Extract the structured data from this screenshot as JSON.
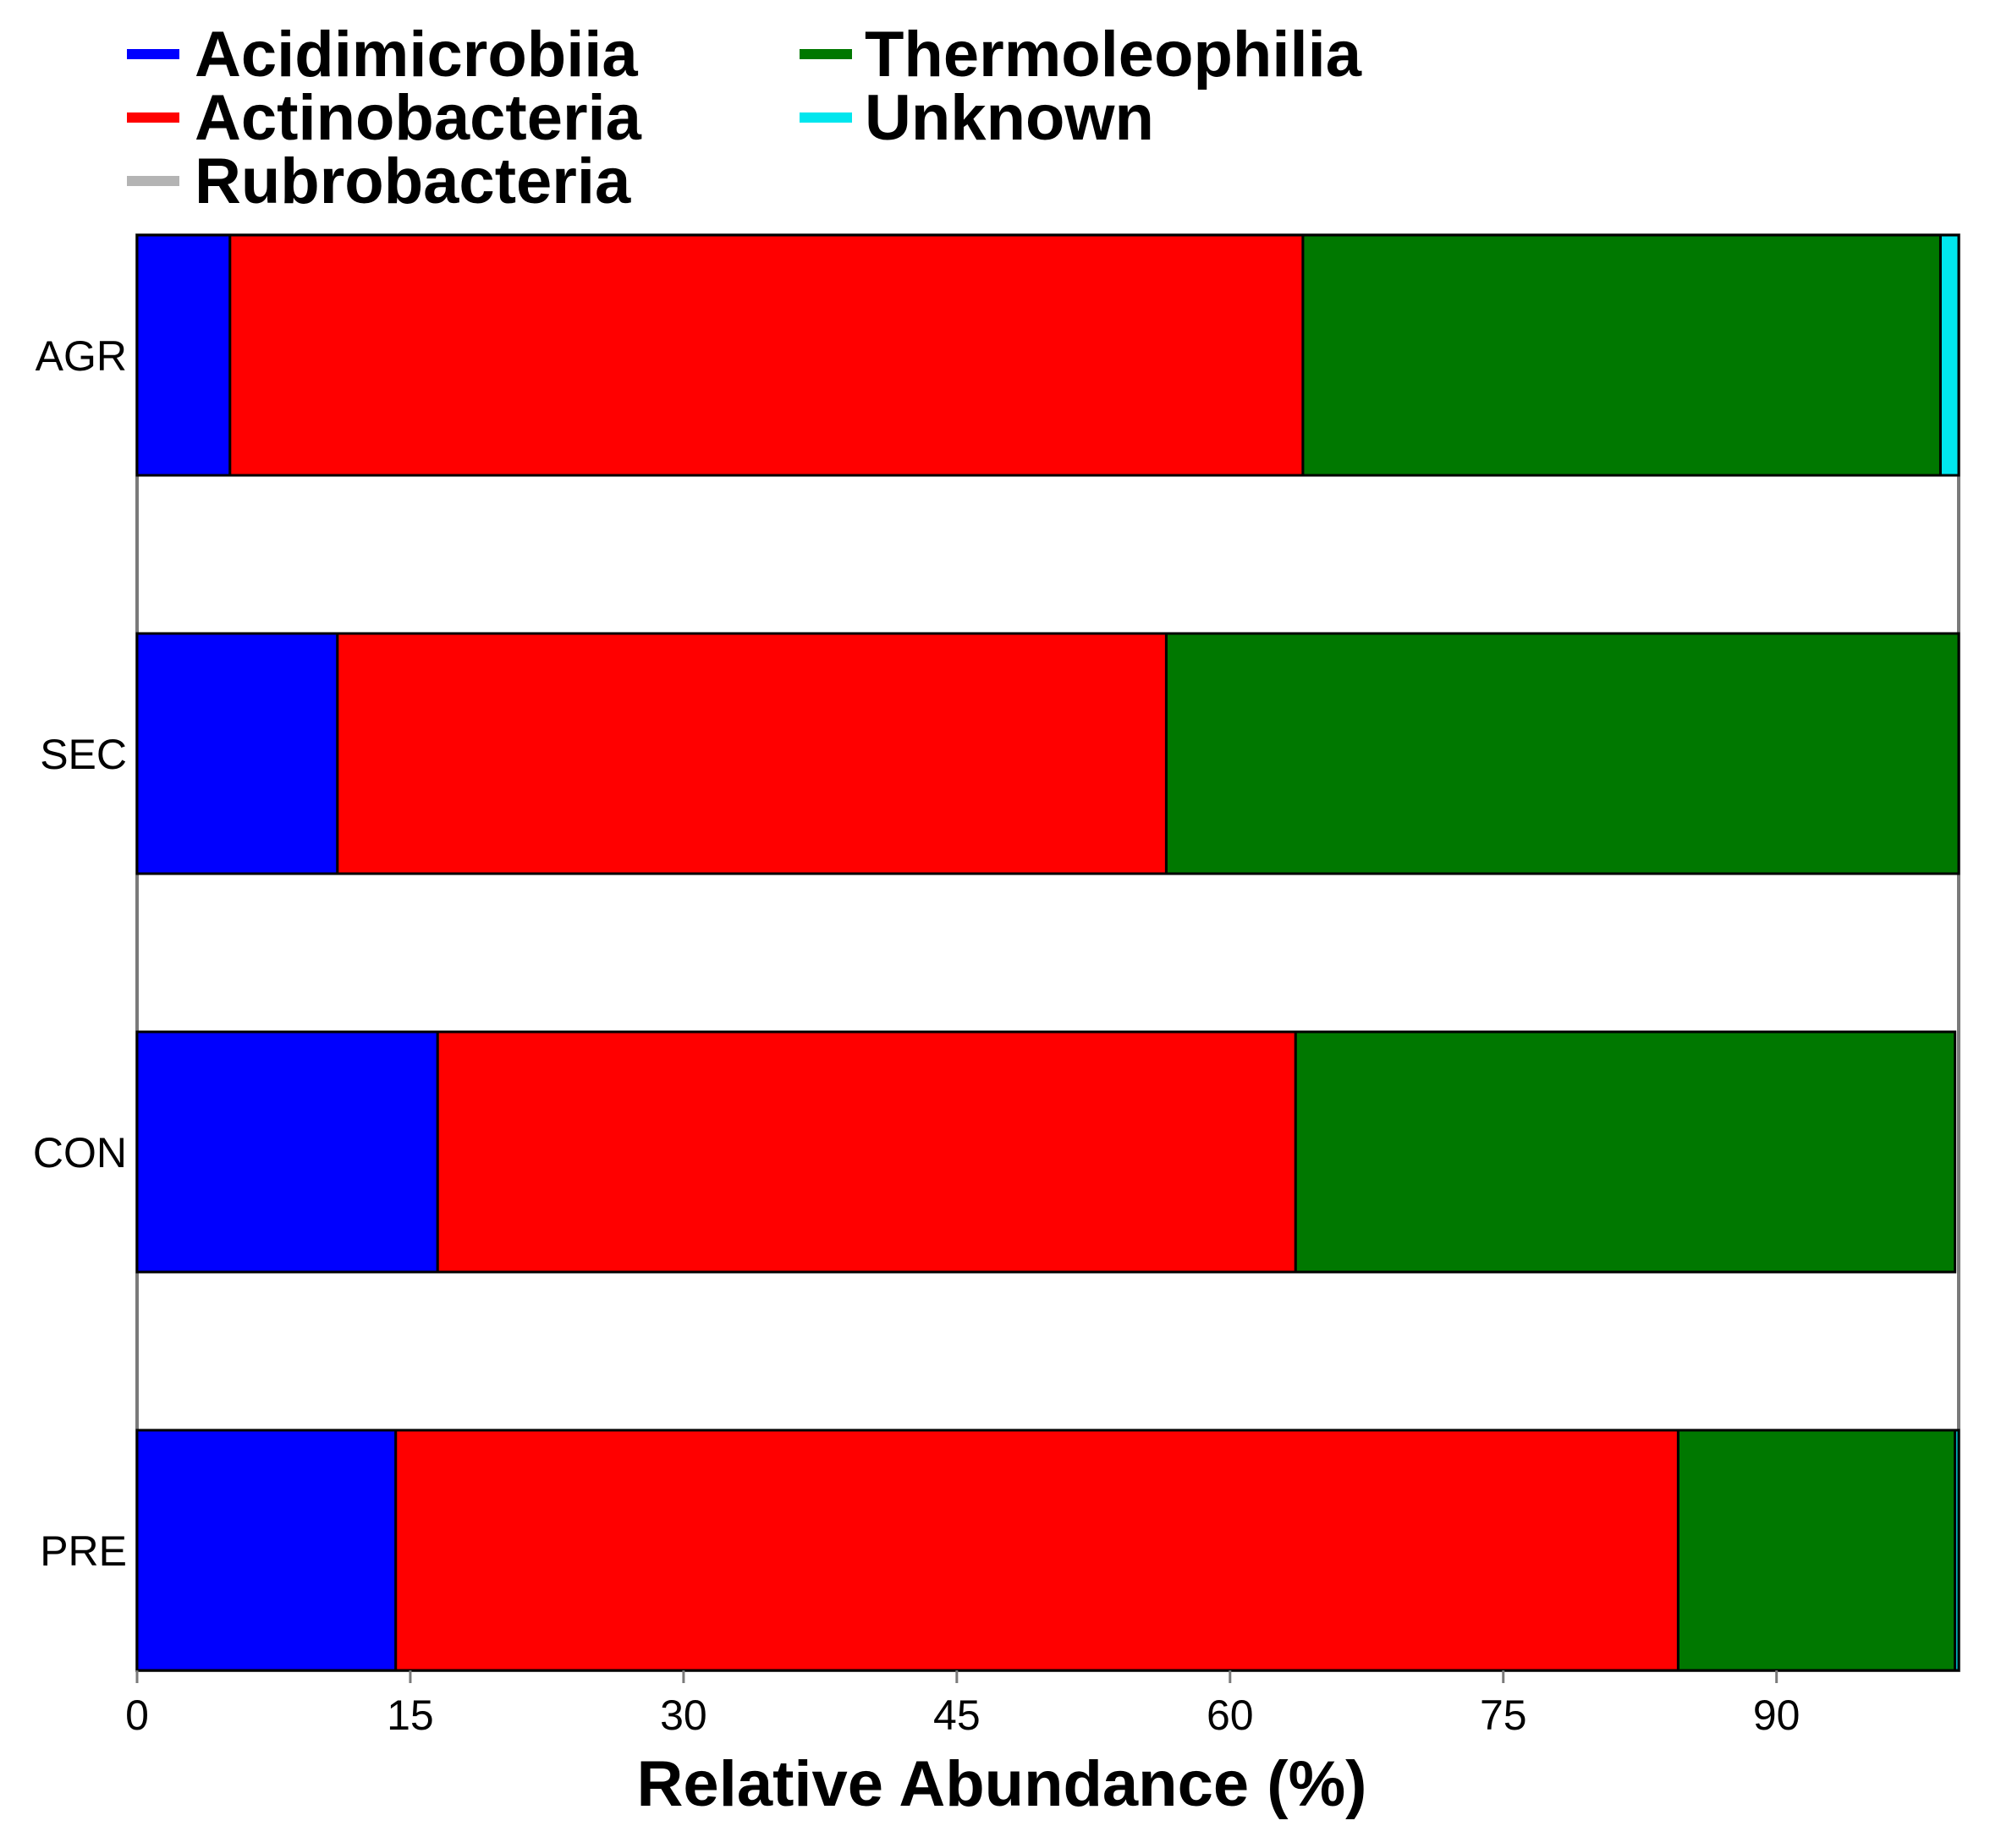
{
  "chart_data": {
    "type": "bar",
    "orientation": "horizontal",
    "stacked": true,
    "categories": [
      "AGR",
      "SEC",
      "CON",
      "PRE"
    ],
    "series": [
      {
        "name": "Acidimicrobiia",
        "color": "#0000ff",
        "values": [
          5.1,
          11.0,
          16.5,
          14.2
        ]
      },
      {
        "name": "Actinobacteria",
        "color": "#ff0000",
        "values": [
          58.9,
          45.5,
          47.1,
          70.4
        ]
      },
      {
        "name": "Rubrobacteria",
        "color": "#b4b4b4",
        "values": [
          0.0,
          0.0,
          0.0,
          0.0
        ]
      },
      {
        "name": "Thermoleophilia",
        "color": "#007800",
        "values": [
          35.0,
          43.5,
          36.2,
          15.2
        ]
      },
      {
        "name": "Unknown",
        "color": "#00e6ee",
        "values": [
          1.0,
          0.0,
          0.0,
          0.2
        ]
      }
    ],
    "xlabel": "Relative Abundance (%)",
    "ylabel": "",
    "xlim": [
      0,
      100
    ],
    "xticks": [
      0,
      15,
      30,
      45,
      60,
      75,
      90
    ],
    "legend_position": "top-left"
  }
}
